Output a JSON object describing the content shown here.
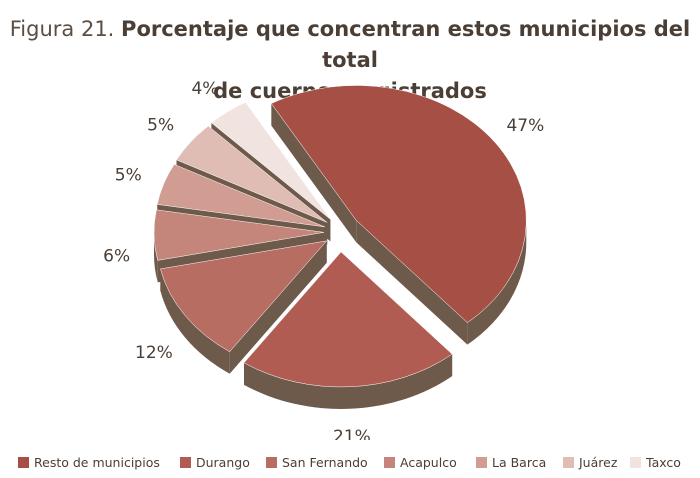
{
  "title_prefix": "Figura 21.",
  "title_main": "Porcentaje que concentran estos municipios del total",
  "title_line2": "de cuerpos registrados",
  "chart_data": {
    "type": "pie",
    "title": "Porcentaje que concentran estos municipios del total de cuerpos registrados",
    "categories": [
      "Resto de municipios",
      "Durango",
      "San Fernando",
      "Acapulco",
      "La Barca",
      "Juárez",
      "Taxco"
    ],
    "values": [
      47,
      21,
      12,
      6,
      5,
      5,
      4
    ],
    "value_labels": [
      "47%",
      "21%",
      "12%",
      "6%",
      "5%",
      "5%",
      "4%"
    ],
    "exploded": true,
    "three_d": true,
    "legend_position": "bottom",
    "colors": [
      "#a54f45",
      "#b05c52",
      "#b86d62",
      "#c4867a",
      "#d19d92",
      "#dfbdb4",
      "#f1e3df"
    ],
    "side_color": "#6e5a4b"
  }
}
